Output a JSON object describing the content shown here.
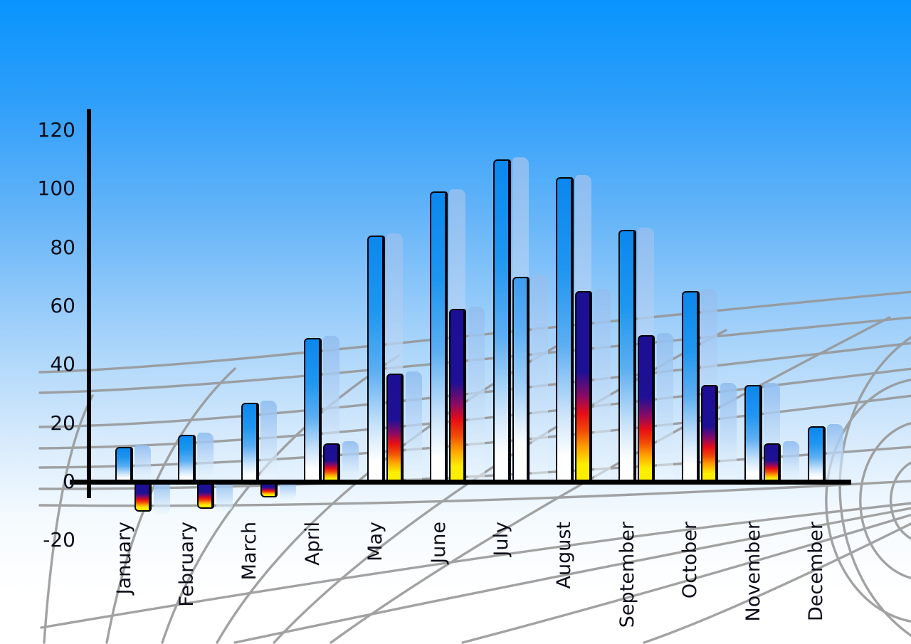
{
  "chart_data": {
    "type": "bar",
    "title": "",
    "categories": [
      "January",
      "February",
      "March",
      "April",
      "May",
      "June",
      "July",
      "August",
      "September",
      "October",
      "November",
      "December"
    ],
    "series": [
      {
        "name": "primary-blue-bars",
        "values": [
          12,
          16,
          27,
          49,
          84,
          99,
          110,
          104,
          86,
          65,
          33,
          19
        ],
        "point_styles": [
          "blue",
          "blue",
          "blue",
          "blue",
          "blue",
          "blue",
          "blue",
          "blue",
          "blue",
          "blue",
          "blue",
          "blue"
        ]
      },
      {
        "name": "secondary-flame-bars",
        "values": [
          -10,
          -9,
          -5,
          13,
          37,
          59,
          70,
          65,
          50,
          33,
          13,
          null
        ],
        "point_styles": [
          "flame",
          "flame",
          "flame",
          "flame",
          "flame",
          "flame",
          "blue",
          "flame",
          "flame",
          "flame",
          "flame",
          null
        ]
      }
    ],
    "y_axis": {
      "ticks": [
        120,
        100,
        80,
        60,
        40,
        20,
        0,
        -20
      ],
      "min": -20,
      "max": 120,
      "gridlines": false
    },
    "x_axis": {
      "label_rotation_deg": 90
    },
    "legend_position": "none",
    "background": "blue-sky-gradient",
    "floor_grid": "gray perspective curved grid"
  },
  "colors": {
    "sky_top": "#0894fe",
    "sky_bottom": "#ffffff",
    "bar_blue": "#0b87ee",
    "echo_bar": "#b9d4f2",
    "flame_navy": "#1d0f93",
    "flame_red": "#e80d16",
    "flame_yellow": "#fbee00",
    "axis": "#000000",
    "grid_line": "#969696",
    "label_text": "#0d0d1a"
  }
}
